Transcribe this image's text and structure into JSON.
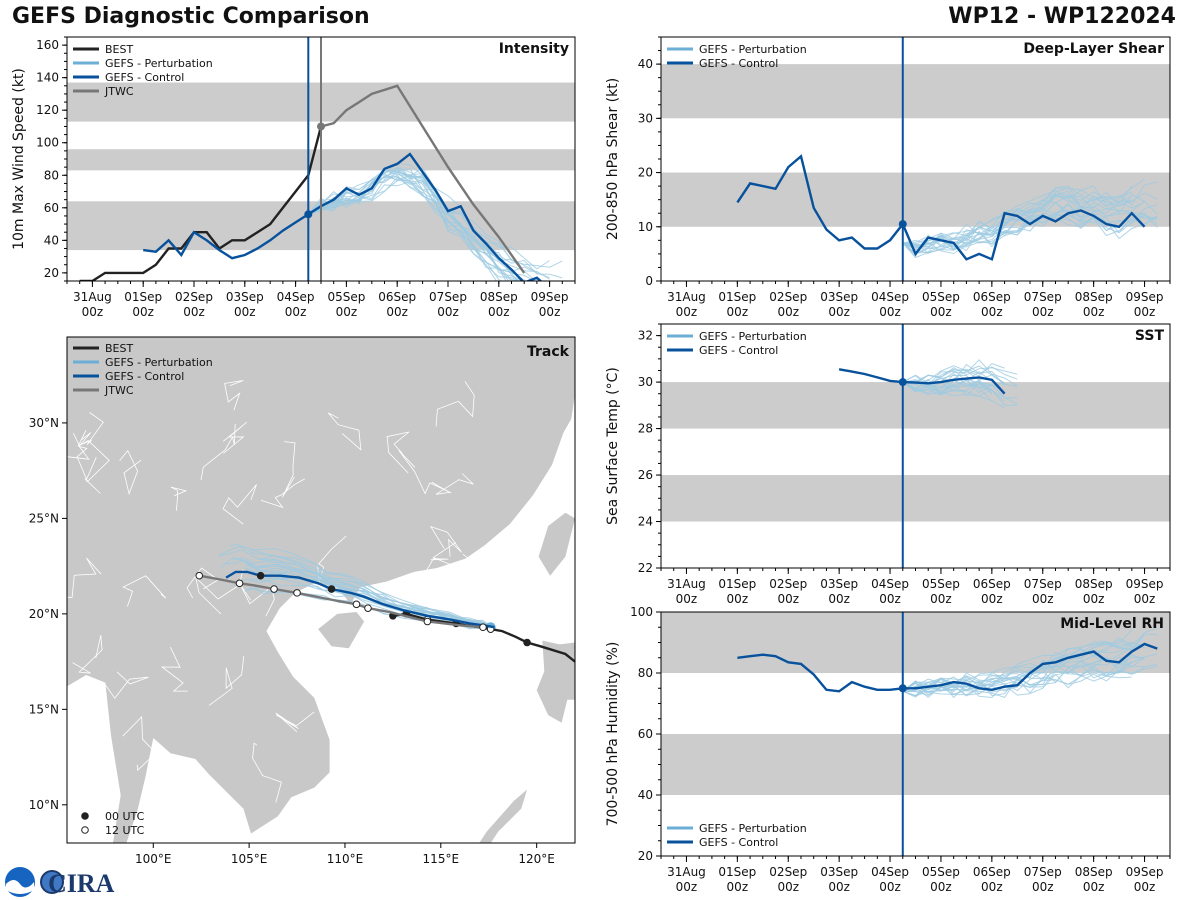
{
  "header": {
    "title": "GEFS Diagnostic Comparison",
    "storm": "WP12 - WP122024"
  },
  "logo": {
    "text": "CIRA",
    "colors": {
      "noaa_blue": "#1565c0",
      "cira_navy": "#1b3a6b",
      "cira_blue": "#3f78c4"
    }
  },
  "colors": {
    "best": "#222222",
    "perturbation": "#9ecae1",
    "perturbation_legend": "#6baed6",
    "control": "#08519c",
    "jtwc": "#777777",
    "band": "#cccccc",
    "land": "#c8c8c8"
  },
  "time_axis": {
    "ticks": [
      0,
      24,
      48,
      72,
      96,
      120,
      144,
      168,
      192,
      216
    ],
    "labels": [
      "31Aug\n00z",
      "01Sep\n00z",
      "02Sep\n00z",
      "03Sep\n00z",
      "04Sep\n00z",
      "05Sep\n00z",
      "06Sep\n00z",
      "07Sep\n00z",
      "08Sep\n00z",
      "09Sep\n00z"
    ],
    "range": [
      -12,
      228
    ]
  },
  "chart_data": [
    {
      "id": "intensity",
      "type": "line",
      "title": "Intensity",
      "ylabel": "10m Max Wind Speed (kt)",
      "ylim": [
        15,
        165
      ],
      "yticks": [
        20,
        40,
        60,
        80,
        100,
        120,
        140,
        160
      ],
      "bands": [
        [
          34,
          64
        ],
        [
          83,
          96
        ],
        [
          113,
          137
        ]
      ],
      "init_time": 102,
      "jtwc_time": 108,
      "legend": [
        "BEST",
        "GEFS - Perturbation",
        "GEFS - Control",
        "JTWC"
      ],
      "series": [
        {
          "name": "BEST",
          "x": [
            -6,
            0,
            6,
            12,
            18,
            24,
            30,
            36,
            42,
            48,
            54,
            60,
            66,
            72,
            78,
            84,
            90,
            96,
            102,
            108
          ],
          "y": [
            15,
            15,
            20,
            20,
            20,
            20,
            25,
            35,
            35,
            45,
            45,
            35,
            40,
            40,
            45,
            50,
            60,
            70,
            80,
            110
          ]
        },
        {
          "name": "GEFS - Control",
          "x": [
            24,
            30,
            36,
            42,
            48,
            54,
            60,
            66,
            72,
            78,
            84,
            90,
            96,
            102,
            108,
            114,
            120,
            126,
            132,
            138,
            144,
            150,
            156,
            162,
            168,
            174,
            180,
            186,
            192,
            198,
            204,
            210,
            216
          ],
          "y": [
            34,
            33,
            40,
            31,
            45,
            40,
            34,
            29,
            31,
            35,
            40,
            46,
            51,
            56,
            61,
            65,
            72,
            68,
            72,
            84,
            87,
            93,
            82,
            71,
            58,
            61,
            46,
            38,
            29,
            22,
            14,
            17,
            10
          ]
        },
        {
          "name": "JTWC",
          "x": [
            108,
            114,
            120,
            126,
            132,
            144,
            156,
            168,
            180,
            192,
            204
          ],
          "y": [
            110,
            112,
            120,
            125,
            130,
            135,
            110,
            85,
            62,
            42,
            20
          ]
        }
      ],
      "perturbation_count": 20,
      "perturbation_profile": {
        "x": [
          102,
          108,
          114,
          120,
          126,
          132,
          138,
          144,
          150,
          156,
          162,
          168,
          174,
          180,
          186,
          192,
          198,
          204,
          210,
          216,
          222
        ],
        "y": [
          56,
          62,
          64,
          66,
          68,
          72,
          78,
          80,
          78,
          74,
          66,
          56,
          50,
          42,
          34,
          26,
          20,
          16,
          14,
          13,
          12
        ]
      }
    },
    {
      "id": "shear",
      "type": "line",
      "title": "Deep-Layer Shear",
      "ylabel": "200-850 hPa Shear (kt)",
      "ylim": [
        0,
        45
      ],
      "yticks": [
        0,
        10,
        20,
        30,
        40
      ],
      "bands": [
        [
          10,
          20
        ],
        [
          30,
          40
        ]
      ],
      "init_time": 102,
      "legend": [
        "GEFS - Perturbation",
        "GEFS - Control"
      ],
      "series": [
        {
          "name": "GEFS - Control",
          "x": [
            24,
            30,
            36,
            42,
            48,
            54,
            60,
            66,
            72,
            78,
            84,
            90,
            96,
            102,
            108,
            114,
            120,
            126,
            132,
            138,
            144,
            150,
            156,
            162,
            168,
            174,
            180,
            186,
            192,
            198,
            204,
            210,
            216
          ],
          "y": [
            14.5,
            18,
            17.5,
            17,
            21,
            23,
            13.5,
            9.5,
            7.5,
            8,
            6,
            6,
            7.5,
            10.5,
            5,
            8,
            7.5,
            7,
            4,
            5,
            4,
            12.5,
            12,
            10.5,
            12,
            11,
            12.5,
            13,
            12,
            10.5,
            10,
            12.5,
            10
          ]
        }
      ],
      "perturbation_count": 20,
      "perturbation_profile": {
        "x": [
          102,
          108,
          114,
          120,
          126,
          132,
          138,
          144,
          150,
          156,
          162,
          168,
          174,
          180,
          186,
          192,
          198,
          204,
          210,
          216,
          222
        ],
        "y": [
          7,
          6,
          7,
          7,
          7,
          8,
          9,
          9,
          10,
          11,
          12,
          13,
          14,
          14,
          13,
          13,
          12,
          12,
          13,
          14,
          14
        ]
      }
    },
    {
      "id": "sst",
      "type": "line",
      "title": "SST",
      "ylabel": "Sea Surface Temp (°C)",
      "ylim": [
        22,
        32.5
      ],
      "yticks": [
        22,
        24,
        26,
        28,
        30,
        32
      ],
      "bands": [
        [
          24,
          26
        ],
        [
          28,
          30
        ]
      ],
      "init_time": 102,
      "legend": [
        "GEFS - Perturbation",
        "GEFS - Control"
      ],
      "series": [
        {
          "name": "GEFS - Control",
          "x": [
            72,
            78,
            84,
            90,
            96,
            102,
            108,
            114,
            120,
            126,
            132,
            138,
            144,
            150
          ],
          "y": [
            30.55,
            30.45,
            30.35,
            30.2,
            30.05,
            30.0,
            29.98,
            29.95,
            30.0,
            30.1,
            30.15,
            30.2,
            30.1,
            29.5
          ]
        }
      ],
      "perturbation_count": 20,
      "perturbation_profile": {
        "x": [
          102,
          108,
          114,
          120,
          126,
          132,
          138,
          144,
          150,
          156
        ],
        "y": [
          30.0,
          29.97,
          29.95,
          30.0,
          30.1,
          30.2,
          30.25,
          30.1,
          29.8,
          29.5
        ]
      }
    },
    {
      "id": "rh",
      "type": "line",
      "title": "Mid-Level RH",
      "ylabel": "700-500 hPa Humidity (%)",
      "ylim": [
        20,
        100
      ],
      "yticks": [
        20,
        40,
        60,
        80,
        100
      ],
      "bands": [
        [
          40,
          60
        ],
        [
          80,
          100
        ]
      ],
      "init_time": 102,
      "legend": [
        "GEFS - Perturbation",
        "GEFS - Control"
      ],
      "series": [
        {
          "name": "GEFS - Control",
          "x": [
            24,
            30,
            36,
            42,
            48,
            54,
            60,
            66,
            72,
            78,
            84,
            90,
            96,
            102,
            108,
            114,
            120,
            126,
            132,
            138,
            144,
            150,
            156,
            162,
            168,
            174,
            180,
            186,
            192,
            198,
            204,
            210,
            216,
            222
          ],
          "y": [
            85,
            85.5,
            86,
            85.5,
            83.5,
            83,
            79.5,
            74.5,
            74,
            77,
            75.5,
            74.5,
            74.5,
            75,
            75,
            75.5,
            76,
            77,
            76.5,
            75,
            74.5,
            75.5,
            76,
            80,
            83,
            83.5,
            85,
            86,
            87,
            84,
            83.5,
            87,
            89.5,
            88
          ]
        }
      ],
      "perturbation_count": 20,
      "perturbation_profile": {
        "x": [
          102,
          108,
          114,
          120,
          126,
          132,
          138,
          144,
          150,
          156,
          162,
          168,
          174,
          180,
          186,
          192,
          198,
          204,
          210,
          216,
          222
        ],
        "y": [
          74,
          75,
          75,
          76,
          76,
          76,
          76,
          76,
          77,
          78,
          79,
          80,
          81,
          82,
          83,
          84,
          84,
          85,
          86,
          87,
          88
        ]
      }
    },
    {
      "id": "track",
      "type": "scatter",
      "title": "Track",
      "xlim": [
        95.5,
        122
      ],
      "ylim": [
        8,
        34.5
      ],
      "xticks": [
        100,
        105,
        110,
        115,
        120
      ],
      "xticklabels": [
        "100°E",
        "105°E",
        "110°E",
        "115°E",
        "120°E"
      ],
      "yticks": [
        10,
        15,
        20,
        25,
        30
      ],
      "yticklabels": [
        "10°N",
        "15°N",
        "20°N",
        "25°N",
        "30°N"
      ],
      "legend": [
        "BEST",
        "GEFS - Perturbation",
        "GEFS - Control",
        "JTWC"
      ],
      "marker_legend": [
        "00 UTC",
        "12 UTC"
      ],
      "series": [
        {
          "name": "BEST",
          "lon": [
            122,
            121.5,
            120.2,
            119.5,
            118.9,
            118.2,
            117.6,
            117.0,
            116.3,
            115.8,
            115.0,
            114.3,
            113.2,
            112.5
          ],
          "lat": [
            17.5,
            17.9,
            18.3,
            18.5,
            18.8,
            19.1,
            19.2,
            19.3,
            19.4,
            19.5,
            19.6,
            19.7,
            20.0,
            19.9
          ],
          "markers": [
            null,
            null,
            null,
            "00",
            null,
            null,
            "12",
            null,
            null,
            "00",
            null,
            "12",
            "00",
            "00"
          ]
        },
        {
          "name": "GEFS - Control",
          "lon": [
            117.8,
            117.2,
            116.5,
            115.5,
            114.3,
            113.0,
            112.0,
            111.0,
            110.3,
            109.3,
            108.6,
            107.6,
            106.6,
            105.6,
            104.9,
            104.3,
            103.8
          ],
          "lat": [
            19.3,
            19.4,
            19.5,
            19.7,
            19.9,
            20.2,
            20.5,
            20.9,
            21.1,
            21.3,
            21.6,
            21.9,
            22.0,
            22.0,
            22.2,
            22.2,
            21.9
          ],
          "markers": [
            null,
            null,
            null,
            null,
            null,
            null,
            null,
            null,
            null,
            "00",
            null,
            null,
            null,
            "00",
            null,
            null,
            null
          ]
        },
        {
          "name": "JTWC",
          "lon": [
            117.2,
            116.0,
            115.2,
            114.3,
            113.5,
            112.3,
            111.2,
            110.6,
            109.5,
            108.5,
            107.5,
            106.3,
            105.2,
            104.5,
            103.5,
            102.4
          ],
          "lat": [
            19.3,
            19.4,
            19.5,
            19.6,
            19.8,
            20.1,
            20.3,
            20.5,
            20.7,
            20.9,
            21.1,
            21.3,
            21.5,
            21.6,
            21.8,
            22.0
          ],
          "markers": [
            "12",
            null,
            null,
            "12",
            null,
            null,
            "12",
            "12",
            null,
            null,
            "12",
            "12",
            null,
            "12",
            null,
            "12"
          ]
        }
      ],
      "perturbation_count": 20
    }
  ]
}
